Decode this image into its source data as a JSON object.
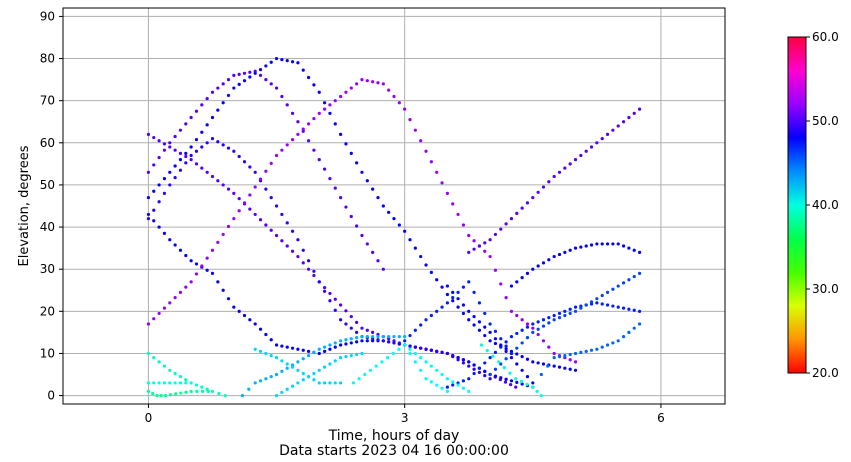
{
  "chart_data": {
    "type": "scatter",
    "title": "",
    "xlabel": "Time, hours of day",
    "xlabel2": "Data starts 2023 04 16 00:00:00",
    "ylabel": "Elevation, degrees",
    "xlim": [
      -1.0,
      6.75
    ],
    "ylim": [
      -2,
      92
    ],
    "xticks": [
      0,
      3,
      6
    ],
    "yticks": [
      0,
      10,
      20,
      30,
      40,
      50,
      60,
      70,
      80,
      90
    ],
    "grid": true,
    "colorbar": {
      "min": 20.0,
      "max": 60.0,
      "ticks": [
        "60.0",
        "50.0",
        "40.0",
        "30.0",
        "20.0"
      ],
      "tick_values": [
        60,
        50,
        40,
        30,
        20
      ],
      "colormap": "hsv"
    },
    "series": [
      {
        "snr": 50,
        "x": [
          0.0,
          0.5,
          1.0,
          1.25,
          1.5,
          1.75,
          2.0,
          2.5,
          3.0,
          3.25,
          3.5,
          3.75,
          4.0,
          4.3
        ],
        "y": [
          62,
          56,
          48,
          43,
          38,
          33,
          27,
          16,
          12,
          11,
          10,
          8,
          5,
          2
        ]
      },
      {
        "snr": 50,
        "x": [
          0.0,
          0.25,
          0.5,
          0.75,
          1.0,
          1.25,
          1.5,
          1.75,
          2.0,
          2.25,
          2.5,
          2.75
        ],
        "y": [
          53,
          60,
          66,
          72,
          76,
          77,
          73,
          65,
          56,
          47,
          38,
          30
        ]
      },
      {
        "snr": 48,
        "x": [
          0.0,
          0.5,
          1.0,
          1.5,
          1.75,
          2.0,
          2.25,
          2.5,
          2.75,
          3.0,
          3.25,
          3.5,
          3.75,
          4.0,
          4.5,
          5.0
        ],
        "y": [
          47,
          59,
          73,
          80,
          79,
          72,
          62,
          53,
          45,
          39,
          31,
          24,
          18,
          13,
          8,
          6
        ]
      },
      {
        "snr": 48,
        "x": [
          0.0,
          0.25,
          0.5,
          0.75,
          1.0,
          1.25,
          1.5,
          2.0,
          2.25,
          2.5,
          2.75,
          3.0,
          3.25,
          3.5,
          3.75,
          4.0,
          4.5
        ],
        "y": [
          43,
          37,
          32,
          29,
          21,
          17,
          12,
          10,
          12,
          13,
          13,
          12,
          11,
          10,
          8,
          5,
          2
        ]
      },
      {
        "snr": 49,
        "x": [
          0.0,
          0.25,
          0.5,
          0.75,
          1.0,
          1.25,
          1.5,
          1.75,
          2.0,
          2.25,
          2.5,
          2.75,
          3.0,
          3.25,
          3.5,
          3.75,
          4.0
        ],
        "y": [
          42,
          50,
          57,
          61,
          58,
          53,
          45,
          37,
          27,
          18,
          14,
          13,
          12,
          11,
          10,
          7,
          4
        ]
      },
      {
        "snr": 52,
        "x": [
          0.0,
          0.5,
          1.0,
          1.5,
          2.0,
          2.25,
          2.5,
          2.75,
          3.0,
          3.25,
          3.5,
          3.75,
          4.0,
          4.25,
          4.5,
          4.75,
          5.0
        ],
        "y": [
          17,
          27,
          42,
          57,
          67,
          71,
          75,
          74,
          68,
          58,
          48,
          38,
          33,
          20,
          16,
          10,
          8
        ]
      },
      {
        "snr": 50,
        "x": [
          3.75,
          4.0,
          4.25,
          4.5,
          4.75,
          5.0,
          5.25,
          5.5,
          5.75
        ],
        "y": [
          34,
          37,
          42,
          47,
          52,
          56,
          60,
          64,
          68
        ]
      },
      {
        "snr": 48,
        "x": [
          4.25,
          4.5,
          4.75,
          5.0,
          5.25,
          5.5,
          5.75
        ],
        "y": [
          26,
          30,
          33,
          35,
          36,
          36,
          34
        ]
      },
      {
        "snr": 47,
        "x": [
          3.5,
          3.75,
          4.0,
          4.25,
          4.5,
          4.75,
          5.0,
          5.25,
          5.5,
          5.75
        ],
        "y": [
          2,
          4,
          9,
          14,
          17,
          19,
          21,
          22,
          21,
          20
        ]
      },
      {
        "snr": 46,
        "x": [
          4.0,
          4.25,
          4.5,
          4.75,
          5.0,
          5.25,
          5.5,
          5.75
        ],
        "y": [
          5,
          10,
          15,
          18,
          20,
          23,
          26,
          29
        ]
      },
      {
        "snr": 45,
        "x": [
          4.6,
          4.75,
          5.0,
          5.25,
          5.5,
          5.75
        ],
        "y": [
          5,
          9,
          10,
          11,
          13,
          17
        ]
      },
      {
        "snr": 48,
        "x": [
          3.5,
          3.75,
          4.0,
          4.25,
          4.5
        ],
        "y": [
          26,
          20,
          15,
          9,
          3
        ]
      },
      {
        "snr": 47,
        "x": [
          3.0,
          3.25,
          3.5,
          3.75,
          4.0,
          4.25
        ],
        "y": [
          13,
          18,
          22,
          27,
          17,
          10
        ]
      },
      {
        "snr": 43,
        "x": [
          1.1,
          1.25,
          1.5,
          1.75,
          2.0,
          2.25,
          2.5,
          2.75,
          3.0
        ],
        "y": [
          0,
          3,
          5,
          8,
          11,
          13,
          14,
          14,
          14
        ]
      },
      {
        "snr": 42,
        "x": [
          1.5,
          1.75,
          2.0,
          2.25,
          2.5
        ],
        "y": [
          0,
          3,
          6,
          9,
          10
        ]
      },
      {
        "snr": 42,
        "x": [
          1.25,
          1.5,
          1.75,
          2.0,
          2.25
        ],
        "y": [
          11,
          9,
          6,
          3,
          3
        ]
      },
      {
        "snr": 41,
        "x": [
          2.4,
          2.6,
          2.8,
          3.0,
          3.25,
          3.5
        ],
        "y": [
          3,
          6,
          9,
          12,
          4,
          1
        ]
      },
      {
        "snr": 41,
        "x": [
          3.0,
          3.25,
          3.5,
          3.75
        ],
        "y": [
          12,
          8,
          4,
          1
        ]
      },
      {
        "snr": 40,
        "x": [
          3.9,
          4.1,
          4.3,
          4.5,
          4.6
        ],
        "y": [
          12,
          8,
          4,
          2,
          0
        ]
      },
      {
        "snr": 39,
        "x": [
          0.0,
          0.25,
          0.5,
          0.75,
          0.9
        ],
        "y": [
          10,
          6,
          3,
          1,
          0
        ]
      },
      {
        "snr": 40,
        "x": [
          0.0,
          0.25,
          0.5
        ],
        "y": [
          3,
          3,
          3
        ]
      },
      {
        "snr": 38,
        "x": [
          0.0,
          0.1,
          0.2,
          0.5,
          0.7
        ],
        "y": [
          1,
          0,
          0,
          1,
          1
        ]
      }
    ]
  }
}
